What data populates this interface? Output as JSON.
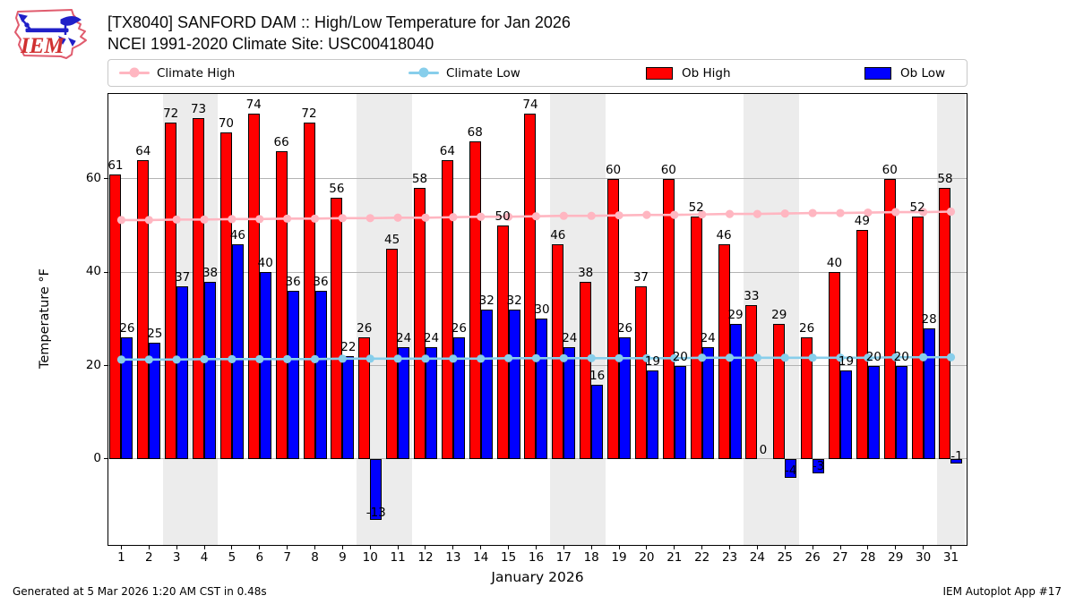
{
  "header": {
    "logo_text": "IEM",
    "title_line1": "[TX8040] SANFORD DAM :: High/Low Temperature for Jan 2026",
    "title_line2": "NCEI 1991-2020 Climate Site: USC00418040"
  },
  "legend": {
    "items": [
      {
        "label": "Climate High",
        "type": "line",
        "color": "#ffb6c1"
      },
      {
        "label": "Climate Low",
        "type": "line",
        "color": "#87ceeb"
      },
      {
        "label": "Ob High",
        "type": "rect",
        "color": "#ff0000"
      },
      {
        "label": "Ob Low",
        "type": "rect",
        "color": "#0000ff"
      }
    ]
  },
  "axes": {
    "ylabel": "Temperature °F",
    "xlabel": "January 2026"
  },
  "footer": {
    "left": "Generated at 5 Mar 2026 1:20 AM CST in 0.48s",
    "right": "IEM Autoplot App #17"
  },
  "chart_data": {
    "type": "bar",
    "title": "[TX8040] SANFORD DAM :: High/Low Temperature for Jan 2026",
    "subtitle": "NCEI 1991-2020 Climate Site: USC00418040",
    "xlabel": "January 2026",
    "ylabel": "Temperature °F",
    "x": [
      1,
      2,
      3,
      4,
      5,
      6,
      7,
      8,
      9,
      10,
      11,
      12,
      13,
      14,
      15,
      16,
      17,
      18,
      19,
      20,
      21,
      22,
      23,
      24,
      25,
      26,
      27,
      28,
      29,
      30,
      31
    ],
    "series": [
      {
        "name": "Ob High",
        "kind": "bar",
        "color": "#ff0000",
        "values": [
          61,
          64,
          72,
          73,
          70,
          74,
          66,
          72,
          56,
          26,
          45,
          58,
          64,
          68,
          50,
          74,
          46,
          38,
          60,
          37,
          60,
          52,
          46,
          33,
          29,
          26,
          40,
          49,
          60,
          52,
          58
        ]
      },
      {
        "name": "Ob Low",
        "kind": "bar",
        "color": "#0000ff",
        "values": [
          26,
          25,
          37,
          38,
          46,
          40,
          36,
          36,
          22,
          -13,
          24,
          24,
          26,
          32,
          32,
          30,
          24,
          16,
          26,
          19,
          20,
          24,
          29,
          0,
          -4,
          -3,
          19,
          20,
          20,
          28,
          -1
        ]
      },
      {
        "name": "Climate High",
        "kind": "line",
        "color": "#ffb6c1",
        "values": [
          51.2,
          51.2,
          51.3,
          51.3,
          51.4,
          51.4,
          51.5,
          51.5,
          51.6,
          51.6,
          51.7,
          51.7,
          51.8,
          51.9,
          51.9,
          52.0,
          52.1,
          52.1,
          52.2,
          52.3,
          52.3,
          52.4,
          52.5,
          52.5,
          52.6,
          52.7,
          52.7,
          52.8,
          52.9,
          52.9,
          53.0
        ]
      },
      {
        "name": "Climate Low",
        "kind": "line",
        "color": "#87ceeb",
        "values": [
          21.3,
          21.3,
          21.3,
          21.4,
          21.4,
          21.4,
          21.4,
          21.4,
          21.5,
          21.5,
          21.5,
          21.5,
          21.5,
          21.5,
          21.6,
          21.6,
          21.6,
          21.6,
          21.6,
          21.6,
          21.6,
          21.7,
          21.7,
          21.7,
          21.7,
          21.7,
          21.7,
          21.7,
          21.8,
          21.8,
          21.8
        ]
      }
    ],
    "yticks": [
      0,
      20,
      40,
      60
    ],
    "ylim": [
      -18.6,
      78.4
    ],
    "xlim": [
      0.5,
      31.6
    ],
    "grid": "horizontal-only",
    "legend_position": "top",
    "weekend_shading_days": [
      [
        3,
        4
      ],
      [
        10,
        11
      ],
      [
        17,
        18
      ],
      [
        24,
        25
      ],
      [
        31,
        31
      ]
    ],
    "band_color": "#ececec",
    "grid_color": "#b3b3b3",
    "bar_label_color": "#000000"
  }
}
